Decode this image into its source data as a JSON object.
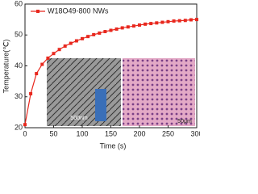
{
  "chart_data": {
    "type": "line",
    "x_label": "Time (s)",
    "y_label": "Temperature(℃)",
    "x": [
      0,
      10,
      20,
      30,
      40,
      50,
      60,
      70,
      80,
      90,
      100,
      110,
      120,
      130,
      140,
      150,
      160,
      170,
      180,
      190,
      200,
      210,
      220,
      230,
      240,
      250,
      260,
      270,
      280,
      290,
      300
    ],
    "series": [
      {
        "name": "W18O49-800 NWs",
        "color": "#e8281e",
        "values": [
          21,
          31,
          37.5,
          40.5,
          42.5,
          44,
          45.3,
          46.4,
          47.3,
          48.1,
          48.8,
          49.5,
          50.1,
          50.6,
          51.1,
          51.5,
          51.9,
          52.3,
          52.6,
          52.9,
          53.2,
          53.5,
          53.7,
          53.9,
          54.1,
          54.3,
          54.5,
          54.6,
          54.7,
          54.9,
          55
        ]
      }
    ],
    "xlim": [
      0,
      300
    ],
    "xticks": [
      0,
      50,
      100,
      150,
      200,
      250,
      300
    ],
    "ylim": [
      20,
      60
    ],
    "yticks": [
      20,
      30,
      40,
      50,
      60
    ],
    "annotations": [
      "500nm",
      "50μm"
    ]
  }
}
